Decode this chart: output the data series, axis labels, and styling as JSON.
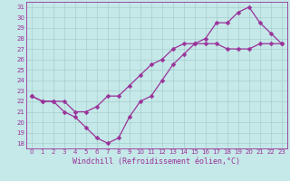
{
  "xlabel": "Windchill (Refroidissement éolien,°C)",
  "background_color": "#c5e8e8",
  "line_color": "#993399",
  "grid_color": "#a0c8c8",
  "line1_x": [
    0,
    1,
    2,
    3,
    4,
    5,
    6,
    7,
    8,
    9,
    10,
    11,
    12,
    13,
    14,
    15,
    16,
    17,
    18,
    19,
    20,
    21,
    22,
    23
  ],
  "line1_y": [
    22.5,
    22.0,
    22.0,
    21.0,
    20.5,
    19.5,
    18.5,
    18.0,
    18.5,
    20.5,
    22.0,
    22.5,
    24.0,
    25.5,
    26.5,
    27.5,
    28.0,
    29.5,
    29.5,
    30.5,
    31.0,
    29.5,
    28.5,
    27.5
  ],
  "line2_x": [
    0,
    1,
    2,
    3,
    4,
    5,
    6,
    7,
    8,
    9,
    10,
    11,
    12,
    13,
    14,
    15,
    16,
    17,
    18,
    19,
    20,
    21,
    22,
    23
  ],
  "line2_y": [
    22.5,
    22.0,
    22.0,
    22.0,
    21.0,
    21.0,
    21.5,
    22.5,
    22.5,
    23.5,
    24.5,
    25.5,
    26.0,
    27.0,
    27.5,
    27.5,
    27.5,
    27.5,
    27.0,
    27.0,
    27.0,
    27.5,
    27.5,
    27.5
  ],
  "xlim": [
    -0.5,
    23.5
  ],
  "ylim": [
    17.5,
    31.5
  ],
  "xtick_vals": [
    0,
    1,
    2,
    3,
    4,
    5,
    6,
    7,
    8,
    9,
    10,
    11,
    12,
    13,
    14,
    15,
    16,
    17,
    18,
    19,
    20,
    21,
    22,
    23
  ],
  "xtick_labels": [
    "0",
    "1",
    "2",
    "3",
    "4",
    "5",
    "6",
    "7",
    "8",
    "9",
    "10",
    "11",
    "12",
    "13",
    "14",
    "15",
    "16",
    "17",
    "18",
    "19",
    "20",
    "21",
    "22",
    "23"
  ],
  "ytick_vals": [
    18,
    19,
    20,
    21,
    22,
    23,
    24,
    25,
    26,
    27,
    28,
    29,
    30,
    31
  ],
  "ytick_labels": [
    "18",
    "19",
    "20",
    "21",
    "22",
    "23",
    "24",
    "25",
    "26",
    "27",
    "28",
    "29",
    "30",
    "31"
  ],
  "markersize": 2.5,
  "linewidth": 0.9,
  "xlabel_fontsize": 6,
  "tick_fontsize": 5
}
